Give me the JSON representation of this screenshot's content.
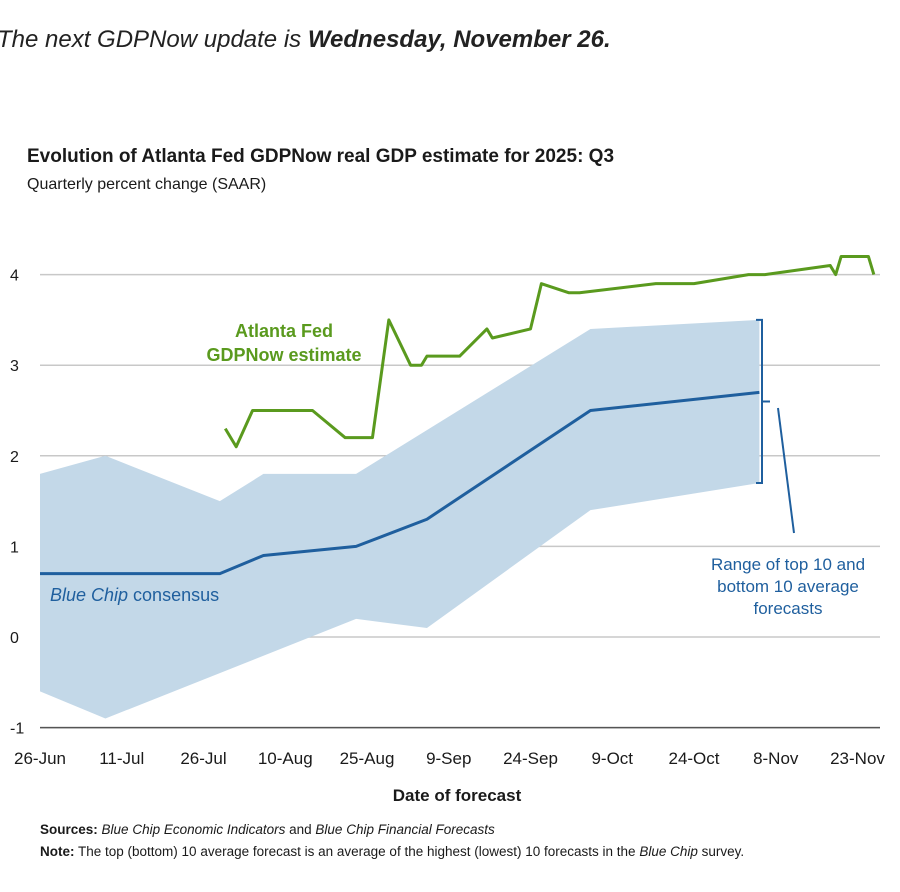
{
  "headline": {
    "prefix": "The next GDPNow update is ",
    "emphasis": "Wednesday, November 26."
  },
  "chart_data": {
    "type": "line",
    "title": "Evolution of Atlanta Fed GDPNow real GDP estimate for 2025: Q3",
    "subtitle": "Quarterly percent change (SAAR)",
    "xlabel": "Date of forecast",
    "ylabel": "",
    "ylim": [
      -1,
      4.4
    ],
    "yticks": [
      4,
      3,
      2,
      1,
      0,
      -1
    ],
    "xlim": [
      "2025-06-26",
      "2025-11-28"
    ],
    "xticks": [
      {
        "date": "2025-06-26",
        "label": "26-Jun"
      },
      {
        "date": "2025-07-11",
        "label": "11-Jul"
      },
      {
        "date": "2025-07-26",
        "label": "26-Jul"
      },
      {
        "date": "2025-08-10",
        "label": "10-Aug"
      },
      {
        "date": "2025-08-25",
        "label": "25-Aug"
      },
      {
        "date": "2025-09-09",
        "label": "9-Sep"
      },
      {
        "date": "2025-09-24",
        "label": "24-Sep"
      },
      {
        "date": "2025-10-09",
        "label": "9-Oct"
      },
      {
        "date": "2025-10-24",
        "label": "24-Oct"
      },
      {
        "date": "2025-11-08",
        "label": "8-Nov"
      },
      {
        "date": "2025-11-23",
        "label": "23-Nov"
      }
    ],
    "grid": true,
    "series": [
      {
        "name": "Atlanta Fed GDPNow estimate",
        "label_lines": [
          "Atlanta Fed",
          "GDPNow estimate"
        ],
        "color": "#5a9a1e",
        "points": [
          [
            "2025-07-30",
            2.3
          ],
          [
            "2025-08-01",
            2.1
          ],
          [
            "2025-08-04",
            2.5
          ],
          [
            "2025-08-15",
            2.5
          ],
          [
            "2025-08-21",
            2.2
          ],
          [
            "2025-08-26",
            2.2
          ],
          [
            "2025-08-29",
            3.5
          ],
          [
            "2025-09-02",
            3.0
          ],
          [
            "2025-09-04",
            3.0
          ],
          [
            "2025-09-05",
            3.1
          ],
          [
            "2025-09-11",
            3.1
          ],
          [
            "2025-09-16",
            3.4
          ],
          [
            "2025-09-17",
            3.3
          ],
          [
            "2025-09-24",
            3.4
          ],
          [
            "2025-09-26",
            3.9
          ],
          [
            "2025-10-01",
            3.8
          ],
          [
            "2025-10-03",
            3.8
          ],
          [
            "2025-10-17",
            3.9
          ],
          [
            "2025-10-24",
            3.9
          ],
          [
            "2025-11-03",
            4.0
          ],
          [
            "2025-11-06",
            4.0
          ],
          [
            "2025-11-18",
            4.1
          ],
          [
            "2025-11-19",
            4.0
          ],
          [
            "2025-11-20",
            4.2
          ],
          [
            "2025-11-25",
            4.2
          ],
          [
            "2025-11-26",
            4.0
          ]
        ]
      },
      {
        "name": "Blue Chip consensus",
        "label_italic": "Blue Chip",
        "label_rest": " consensus",
        "color": "#1f5f9e",
        "points": [
          [
            "2025-06-26",
            0.7
          ],
          [
            "2025-07-29",
            0.7
          ],
          [
            "2025-08-06",
            0.9
          ],
          [
            "2025-08-23",
            1.0
          ],
          [
            "2025-09-05",
            1.3
          ],
          [
            "2025-10-05",
            2.5
          ],
          [
            "2025-11-05",
            2.7
          ]
        ]
      }
    ],
    "band": {
      "name": "Range of top 10 and bottom 10 average forecasts",
      "label_lines": [
        "Range of top 10 and",
        "bottom 10 average",
        "forecasts"
      ],
      "color": "#c3d8e8",
      "top": [
        [
          "2025-06-26",
          1.8
        ],
        [
          "2025-07-08",
          2.0
        ],
        [
          "2025-07-29",
          1.5
        ],
        [
          "2025-08-06",
          1.8
        ],
        [
          "2025-08-23",
          1.8
        ],
        [
          "2025-10-05",
          3.4
        ],
        [
          "2025-11-05",
          3.5
        ]
      ],
      "bottom": [
        [
          "2025-06-26",
          -0.6
        ],
        [
          "2025-07-08",
          -0.9
        ],
        [
          "2025-08-23",
          0.2
        ],
        [
          "2025-09-05",
          0.1
        ],
        [
          "2025-10-05",
          1.4
        ],
        [
          "2025-11-05",
          1.7
        ]
      ]
    },
    "sources": {
      "label": "Sources:",
      "italic1": "Blue Chip Economic Indicators",
      "mid": " and ",
      "italic2": "Blue Chip Financial Forecasts"
    },
    "note": {
      "label": "Note:",
      "text1": " The top (bottom) 10 average forecast is an average of the highest (lowest) 10 forecasts in the ",
      "italic": "Blue Chip",
      "text2": " survey."
    }
  }
}
